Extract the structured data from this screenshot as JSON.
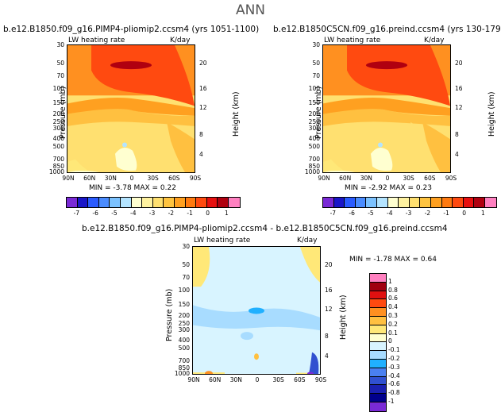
{
  "main_title": "ANN",
  "panels": [
    {
      "title": "b.e12.B1850.f09_g16.PIMP4-pliomip2.ccsm4 (yrs 1051-1100)",
      "left_label": "LW heating rate",
      "right_label": "K/day",
      "ylabel": "Pressure (mb)",
      "ylabel_right": "Height (km)",
      "stats": "MIN =   -3.78   MAX =    0.22"
    },
    {
      "title": "b.e12.B1850C5CN.f09_g16.preind.ccsm4 (yrs 130-179)",
      "left_label": "LW heating rate",
      "right_label": "K/day",
      "ylabel": "Pressure (mb)",
      "ylabel_right": "Height (km)",
      "stats": "MIN =   -2.92   MAX =    0.23"
    },
    {
      "title": "b.e12.B1850.f09_g16.PIMP4-pliomip2.ccsm4 - b.e12.B1850C5CN.f09_g16.preind.ccsm4",
      "left_label": "LW heating rate",
      "right_label": "K/day",
      "ylabel": "Pressure (mb)",
      "ylabel_right": "Height (km)",
      "stats": "MIN =   -1.78   MAX =    0.64"
    }
  ],
  "chart_data": [
    {
      "type": "heatmap",
      "title": "b.e12.B1850.f09_g16.PIMP4-pliomip2.ccsm4 (yrs 1051-1100)",
      "subtitle": "LW heating rate",
      "units": "K/day",
      "xlabel": "",
      "ylabel": "Pressure (mb)",
      "ylabel_right": "Height (km)",
      "x_ticks": [
        "90N",
        "60N",
        "30N",
        "0",
        "30S",
        "60S",
        "90S"
      ],
      "y_ticks": [
        "30",
        "50",
        "70",
        "100",
        "150",
        "200",
        "250",
        "300",
        "400",
        "500",
        "700",
        "850",
        "1000"
      ],
      "y_ticks_right": [
        "20",
        "16",
        "12",
        "8",
        "4"
      ],
      "ylim": [
        1000,
        30
      ],
      "min": -3.78,
      "max": 0.22,
      "colorbar_labels": [
        "-7",
        "-6",
        "-5",
        "-4",
        "-3",
        "-2",
        "-1",
        "0",
        "1"
      ]
    },
    {
      "type": "heatmap",
      "title": "b.e12.B1850C5CN.f09_g16.preind.ccsm4 (yrs 130-179)",
      "subtitle": "LW heating rate",
      "units": "K/day",
      "xlabel": "",
      "ylabel": "Pressure (mb)",
      "ylabel_right": "Height (km)",
      "x_ticks": [
        "90N",
        "60N",
        "30N",
        "0",
        "30S",
        "60S",
        "90S"
      ],
      "y_ticks": [
        "30",
        "50",
        "70",
        "100",
        "150",
        "200",
        "250",
        "300",
        "400",
        "500",
        "700",
        "850",
        "1000"
      ],
      "y_ticks_right": [
        "20",
        "16",
        "12",
        "8",
        "4"
      ],
      "ylim": [
        1000,
        30
      ],
      "min": -2.92,
      "max": 0.23,
      "colorbar_labels": [
        "-7",
        "-6",
        "-5",
        "-4",
        "-3",
        "-2",
        "-1",
        "0",
        "1"
      ]
    },
    {
      "type": "heatmap",
      "title": "b.e12.B1850.f09_g16.PIMP4-pliomip2.ccsm4 - b.e12.B1850C5CN.f09_g16.preind.ccsm4",
      "subtitle": "LW heating rate",
      "units": "K/day",
      "xlabel": "",
      "ylabel": "Pressure (mb)",
      "ylabel_right": "Height (km)",
      "x_ticks": [
        "90N",
        "60N",
        "30N",
        "0",
        "30S",
        "60S",
        "90S"
      ],
      "y_ticks": [
        "30",
        "50",
        "70",
        "100",
        "150",
        "200",
        "250",
        "300",
        "400",
        "500",
        "700",
        "850",
        "1000"
      ],
      "y_ticks_right": [
        "20",
        "16",
        "12",
        "8",
        "4"
      ],
      "ylim": [
        1000,
        30
      ],
      "min": -1.78,
      "max": 0.64,
      "colorbar_labels": [
        "1",
        "0.8",
        "0.6",
        "0.4",
        "0.3",
        "0.2",
        "0.1",
        "0",
        "-0.1",
        "-0.2",
        "-0.3",
        "-0.4",
        "-0.6",
        "-0.8",
        "-1"
      ]
    }
  ],
  "colorbar_top": {
    "labels": [
      "-7",
      "-6",
      "-5",
      "-4",
      "-3",
      "-2",
      "-1",
      "0",
      "1"
    ],
    "colors": [
      "#7a2ad6",
      "#1a16c8",
      "#2a5bff",
      "#4a8cff",
      "#7cc2ff",
      "#b4e4ff",
      "#ffffd0",
      "#fff2a0",
      "#ffe070",
      "#ffc440",
      "#ffa020",
      "#ff7a10",
      "#ff4a10",
      "#e81010",
      "#b00010",
      "#ff80c0"
    ]
  },
  "colorbar_diff": {
    "labels": [
      "1",
      "0.8",
      "0.6",
      "0.4",
      "0.3",
      "0.2",
      "0.1",
      "0",
      "-0.1",
      "-0.2",
      "-0.3",
      "-0.4",
      "-0.6",
      "-0.8",
      "-1"
    ],
    "colors": [
      "#ff80c0",
      "#a00010",
      "#e01010",
      "#ff4a10",
      "#ff9020",
      "#ffc040",
      "#ffe878",
      "#ffffd0",
      "#d8f4ff",
      "#a8dcff",
      "#20b0ff",
      "#4a80f0",
      "#3050d0",
      "#1a20b0",
      "#00008c",
      "#7a2ad6"
    ]
  }
}
